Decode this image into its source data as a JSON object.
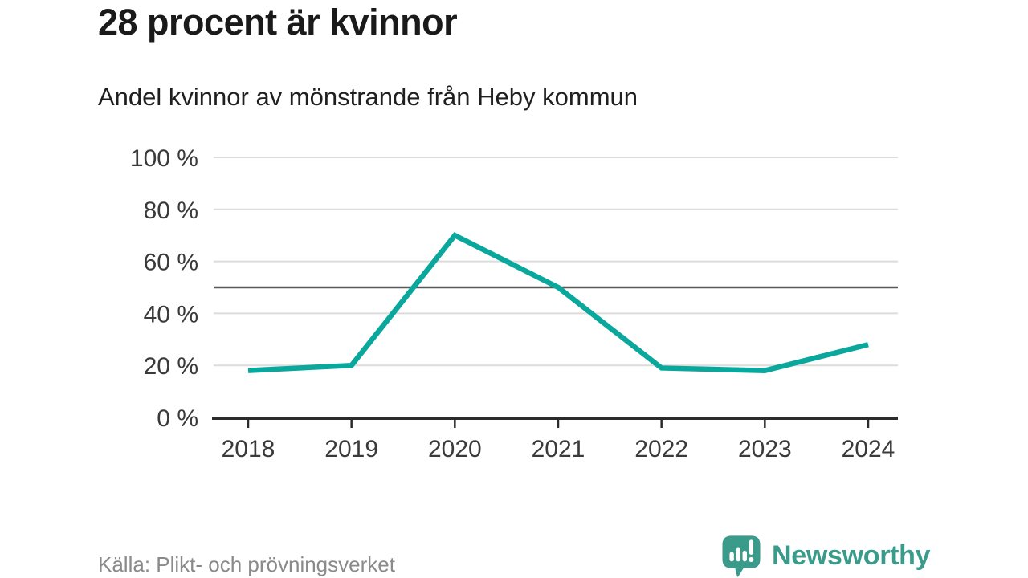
{
  "header": {
    "title": "28 procent är kvinnor",
    "subtitle": "Andel kvinnor av mönstrande från Heby kommun"
  },
  "footer": {
    "source": "Källa: Plikt- och prövningsverket",
    "brand": "Newsworthy"
  },
  "colors": {
    "line": "#0aa79d",
    "grid": "#dcdcdc",
    "reference": "#595959",
    "axis": "#2b2b2b",
    "tick_text": "#3a3a3a",
    "source_text": "#8a8a8a",
    "brand": "#3b9b8b"
  },
  "chart_data": {
    "type": "line",
    "series_name": "Andel kvinnor av mönstrande",
    "categories": [
      "2018",
      "2019",
      "2020",
      "2021",
      "2022",
      "2023",
      "2024"
    ],
    "values": [
      18,
      20,
      70,
      50,
      19,
      18,
      28
    ],
    "unit": "%",
    "ylim": [
      0,
      100
    ],
    "yticks": [
      0,
      20,
      40,
      60,
      80,
      100
    ],
    "ytick_labels": [
      "0 %",
      "20 %",
      "40 %",
      "60 %",
      "80 %",
      "100 %"
    ],
    "reference_line": 50,
    "grid": true,
    "legend": false
  }
}
